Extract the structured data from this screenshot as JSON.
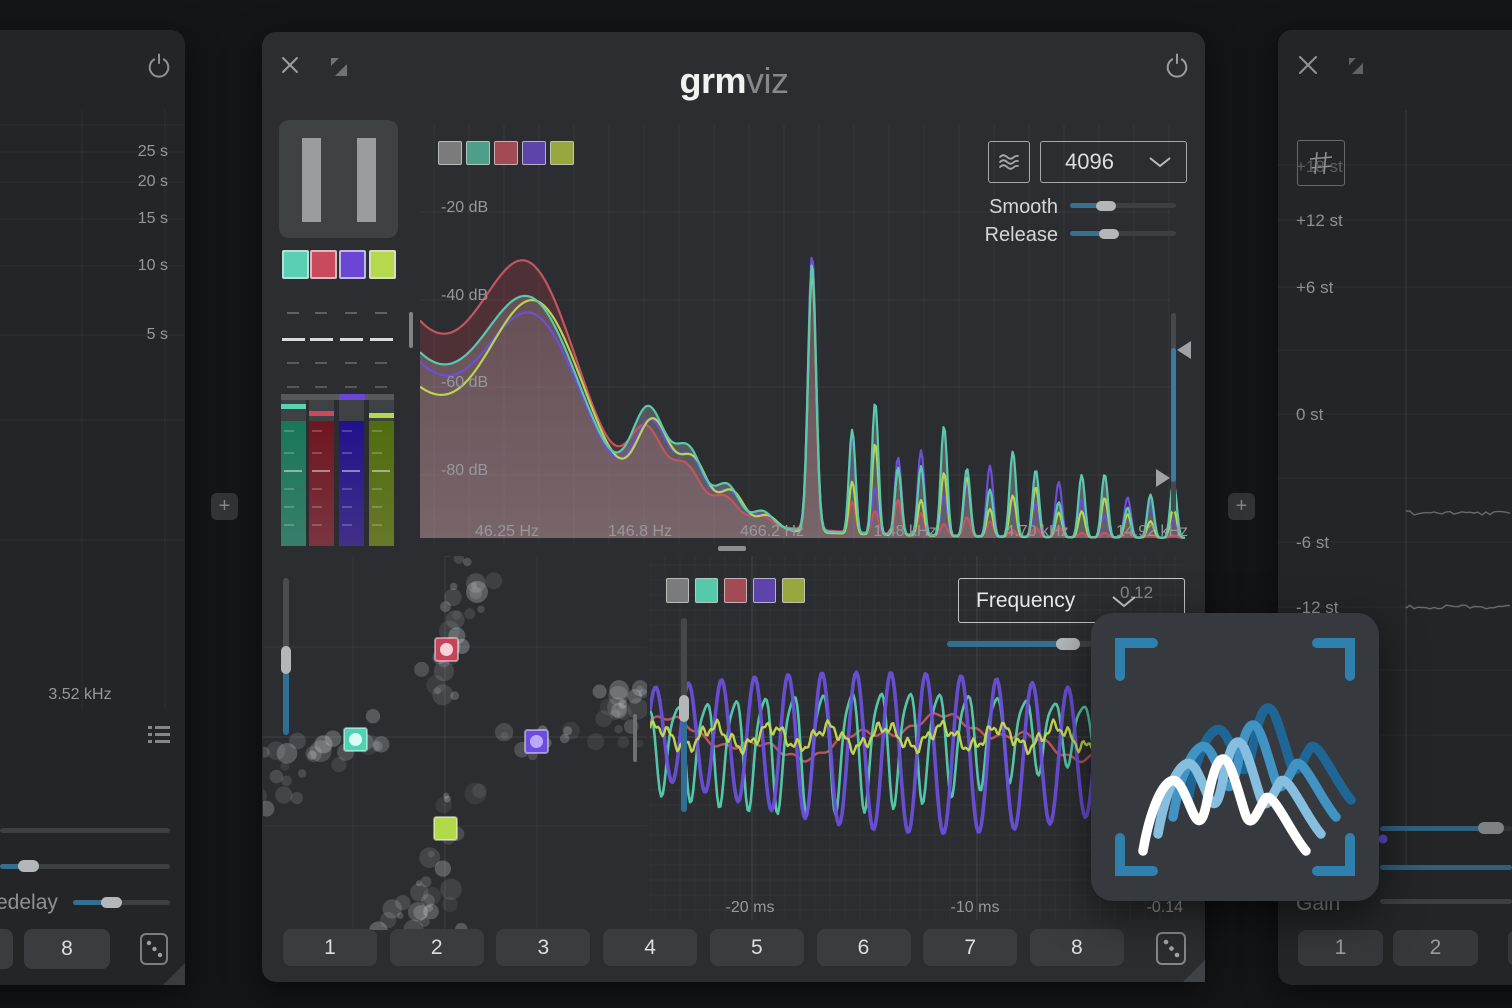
{
  "page": {
    "bg": "#141518"
  },
  "left_panel": {
    "time_ticks": [
      "25 s",
      "20 s",
      "15 s",
      "10 s",
      "5 s"
    ],
    "freq_readout": "3.52 kHz",
    "predelay_label": "edelay",
    "preset_button": "8",
    "icons": [
      "power-icon",
      "list-icon",
      "dice-icon"
    ]
  },
  "between": {
    "add_left": "+",
    "add_right": "+"
  },
  "main": {
    "title": {
      "bold": "grm",
      "light": "viz"
    },
    "icons": [
      "close-icon",
      "resize-icon",
      "power-icon",
      "pause-icon",
      "waves-icon",
      "chevron-down-icon",
      "dice-icon"
    ],
    "palette": [
      "#59cfb3",
      "#c84a5c",
      "#6a46d4",
      "#b6d84d"
    ],
    "meters": {
      "bar_colors": [
        "#4fae96",
        "#a84a58",
        "#5a43bd",
        "#8fa63b"
      ],
      "cap_colors": [
        "#5ad2b4",
        "#c84a5c",
        null,
        "#b6d84d"
      ],
      "slider_segment_color": "#6a46d4"
    },
    "spectrum": {
      "swatches": [
        "#7b7b7b",
        "#4f9e8a",
        "#a34b55",
        "#5d44aa",
        "#99a73f"
      ],
      "fft_size": "4096",
      "smooth_label": "Smooth",
      "release_label": "Release",
      "db_ticks": [
        "-20 dB",
        "-40 dB",
        "-60 dB",
        "-80 dB"
      ],
      "freq_ticks": [
        "46.25 Hz",
        "146.8 Hz",
        "466.2 Hz",
        "1.48 kHz",
        "4.70 kHz",
        "14.92 kHz"
      ],
      "series_colors": {
        "red": "#c45462",
        "teal": "#58c9ae",
        "purple": "#6b4fd6",
        "green": "#b9d352"
      }
    },
    "scatter": {
      "marker_colors": [
        "#c6435c",
        "#4fd2b4",
        "#6a4ce0",
        "#b3d84a"
      ]
    },
    "scope": {
      "swatches": [
        "#7b7b7b",
        "#57c9ab",
        "#a34b55",
        "#5d44aa",
        "#99a73f"
      ],
      "mode": "Frequency",
      "value_top": "0.12",
      "time_ticks": [
        "-20 ms",
        "-10 ms"
      ],
      "value_bottom": "-0.14",
      "wave_colors": {
        "purple": "#6a4fd8",
        "teal": "#57cdaf",
        "green": "#c6dc55",
        "red": "#c45563"
      }
    },
    "presets": [
      "1",
      "2",
      "3",
      "4",
      "5",
      "6",
      "7",
      "8"
    ]
  },
  "right_panel": {
    "semitone_ticks": [
      "+18 st",
      "+12 st",
      "+6 st",
      "0 st",
      "-6 st",
      "-12 st"
    ],
    "gain_label": "Gain",
    "presets": [
      "1",
      "2"
    ],
    "icons": [
      "close-icon",
      "resize-icon",
      "grid-icon"
    ]
  },
  "accent": {
    "slider_blue": "#35718f",
    "logo_blue": "#2f80ac"
  }
}
